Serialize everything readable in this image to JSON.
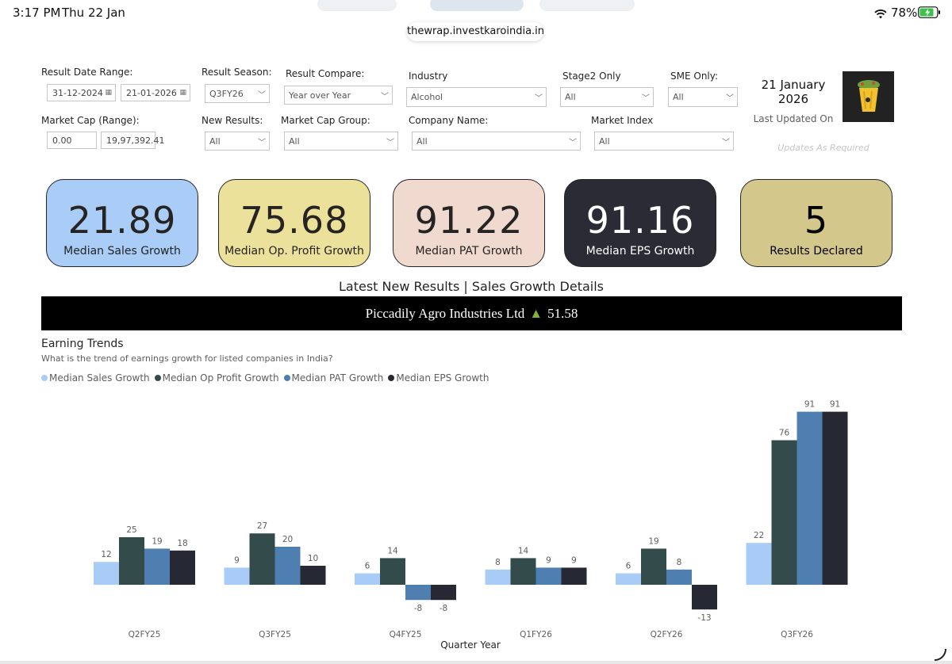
{
  "status_bar": {
    "time": "3:17 PM",
    "date": "Thu 22 Jan",
    "battery": "78%"
  },
  "browser": {
    "url": "thewrap.investkaroindia.in"
  },
  "filters": {
    "result_date_range": {
      "label": "Result Date Range:",
      "from": "31-12-2024",
      "to": "21-01-2026"
    },
    "result_season": {
      "label": "Result Season:",
      "value": "Q3FY26"
    },
    "result_compare": {
      "label": "Result Compare:",
      "value": "Year over Year"
    },
    "industry": {
      "label": "Industry",
      "value": "Alcohol"
    },
    "stage2_only": {
      "label": "Stage2 Only",
      "value": "All"
    },
    "sme_only": {
      "label": "SME Only:",
      "value": "All"
    },
    "market_cap_range": {
      "label": "Market Cap (Range):",
      "min": "0.00",
      "max": "19,97,392.41"
    },
    "new_results": {
      "label": "New Results:",
      "value": "All"
    },
    "market_cap_group": {
      "label": "Market Cap Group:",
      "value": "All"
    },
    "company_name": {
      "label": "Company Name:",
      "value": "All"
    },
    "market_index": {
      "label": "Market Index",
      "value": "All"
    }
  },
  "last_updated": {
    "date": "21 January",
    "year": "2026",
    "label": "Last Updated On",
    "note": "Updates As Required"
  },
  "kpis": [
    {
      "value": "21.89",
      "caption": "Median Sales Growth",
      "bg": "#a9cdf7",
      "fg": "#252423"
    },
    {
      "value": "75.68",
      "caption": "Median Op. Profit Growth",
      "bg": "#ece19a",
      "fg": "#252423"
    },
    {
      "value": "91.22",
      "caption": "Median PAT Growth",
      "bg": "#f0dacf",
      "fg": "#252423"
    },
    {
      "value": "91.16",
      "caption": "Median EPS Growth",
      "bg": "#2b2b35",
      "fg": "#ffffff"
    },
    {
      "value": "5",
      "caption": "Results Declared",
      "bg": "#d3c78c",
      "fg": "#000000"
    }
  ],
  "section_title": "Latest New Results | Sales Growth Details",
  "ticker": {
    "company": "Piccadily Agro Industries Ltd",
    "arrow": "▲",
    "value": "51.58",
    "arrow_color": "#7fb33a"
  },
  "trends": {
    "title": "Earning Trends",
    "subtitle": "What is the trend of earnings growth for listed companies in India?"
  },
  "chart_data": {
    "type": "bar",
    "xlabel": "Quarter Year",
    "ylabel": "",
    "ylim": [
      -13,
      91
    ],
    "categories": [
      "Q2FY25",
      "Q3FY25",
      "Q4FY25",
      "Q1FY26",
      "Q2FY26",
      "Q3FY26"
    ],
    "series": [
      {
        "name": "Median Sales Growth",
        "color": "#a8ccf5",
        "values": [
          12,
          9,
          6,
          8,
          6,
          22
        ]
      },
      {
        "name": "Median Op Profit Growth",
        "color": "#344b4b",
        "values": [
          25,
          27,
          14,
          14,
          19,
          76
        ]
      },
      {
        "name": "Median PAT Growth",
        "color": "#4f7fb0",
        "values": [
          19,
          20,
          -8,
          9,
          8,
          91
        ]
      },
      {
        "name": "Median EPS Growth",
        "color": "#262833",
        "values": [
          18,
          10,
          -8,
          9,
          -13,
          91
        ]
      }
    ],
    "legend_position": "top-left",
    "grid": false
  }
}
